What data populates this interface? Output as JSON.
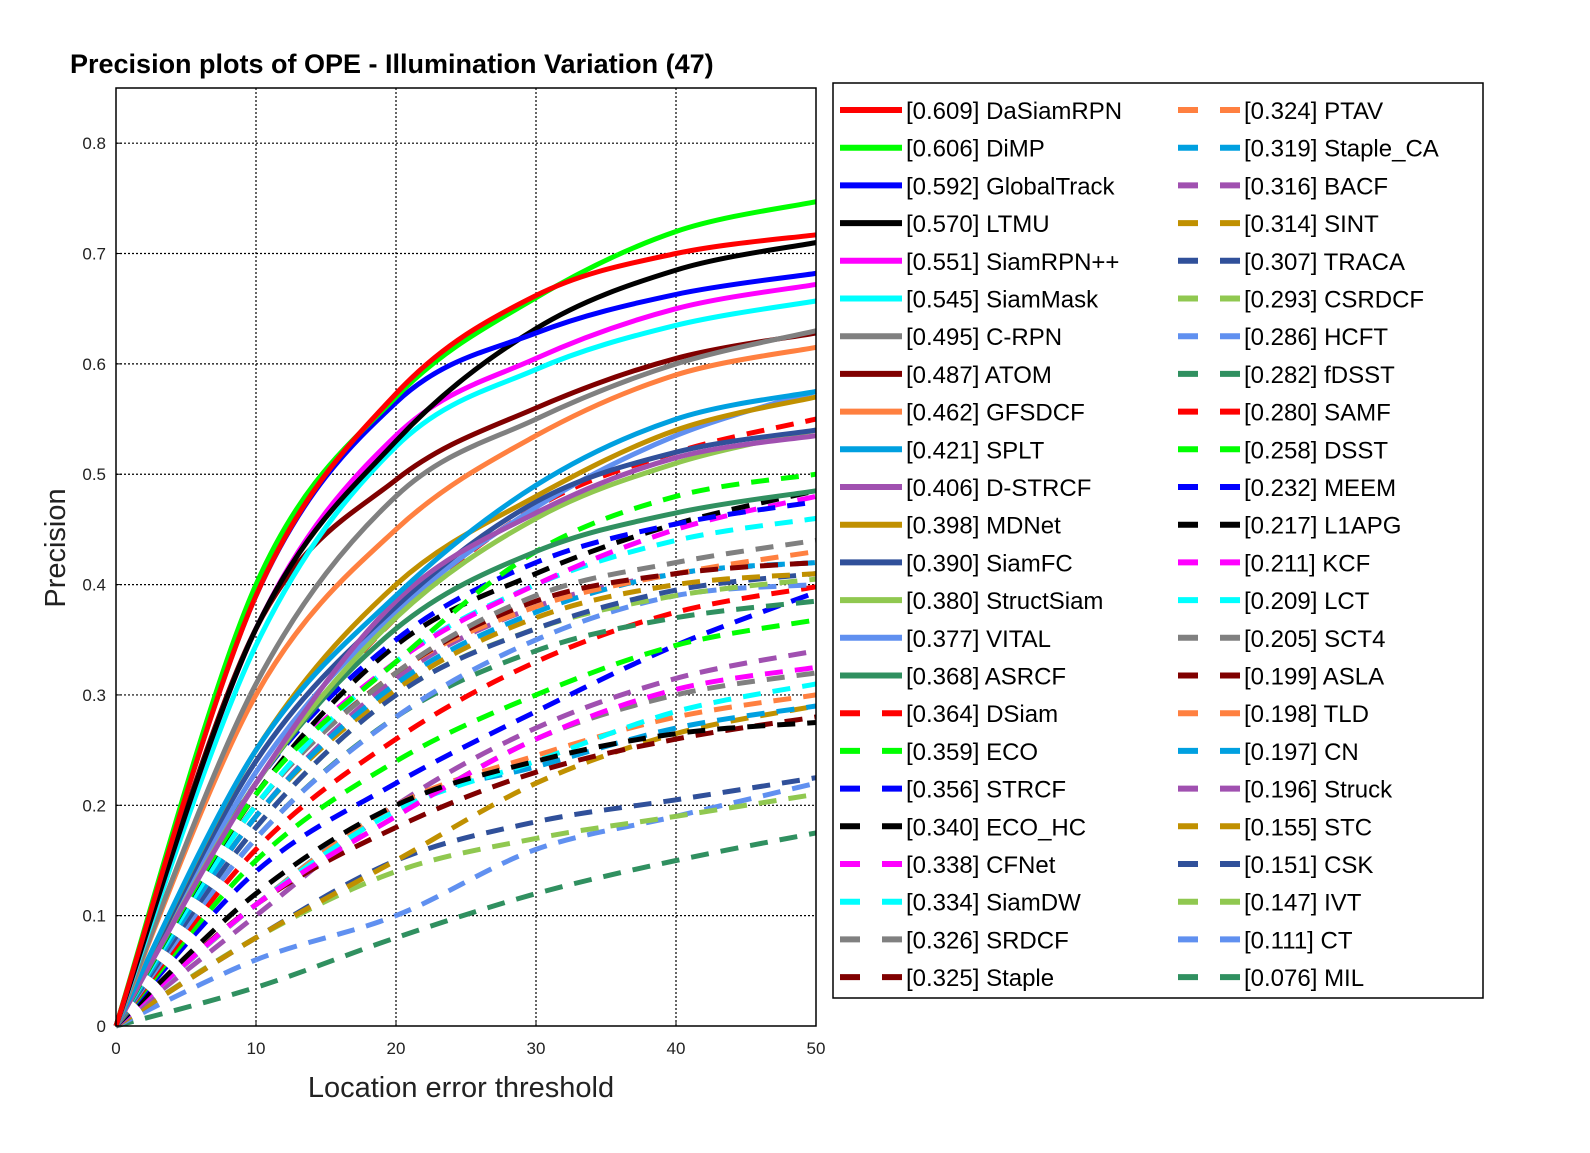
{
  "chart_data": {
    "type": "line",
    "title": "Precision plots of OPE - Illumination Variation (47)",
    "xlabel": "Location error threshold",
    "ylabel": "Precision",
    "xlim": [
      0,
      50
    ],
    "ylim": [
      0,
      0.85
    ],
    "xticks": [
      "0",
      "10",
      "20",
      "30",
      "40",
      "50"
    ],
    "yticks": [
      "0",
      "0.1",
      "0.2",
      "0.3",
      "0.4",
      "0.5",
      "0.6",
      "0.7",
      "0.8"
    ],
    "grid": true,
    "legend_position": "right",
    "series": [
      {
        "label": "[0.609] DaSiamRPN",
        "color": "#ff0000",
        "dashed": false,
        "values": [
          0.0,
          0.39,
          0.573,
          0.662,
          0.7,
          0.717
        ]
      },
      {
        "label": "[0.606] DiMP",
        "color": "#00ff00",
        "dashed": false,
        "values": [
          0.0,
          0.4,
          0.57,
          0.66,
          0.72,
          0.747
        ]
      },
      {
        "label": "[0.592] GlobalTrack",
        "color": "#0000ff",
        "dashed": false,
        "values": [
          0.0,
          0.39,
          0.565,
          0.628,
          0.663,
          0.682
        ]
      },
      {
        "label": "[0.570] LTMU",
        "color": "#000000",
        "dashed": false,
        "values": [
          0.0,
          0.36,
          0.53,
          0.632,
          0.685,
          0.71
        ]
      },
      {
        "label": "[0.551] SiamRPN++",
        "color": "#ff00ff",
        "dashed": false,
        "values": [
          0.0,
          0.36,
          0.535,
          0.605,
          0.65,
          0.672
        ]
      },
      {
        "label": "[0.545] SiamMask",
        "color": "#00ffff",
        "dashed": false,
        "values": [
          0.0,
          0.345,
          0.525,
          0.595,
          0.635,
          0.657
        ]
      },
      {
        "label": "[0.495] C-RPN",
        "color": "#808080",
        "dashed": false,
        "values": [
          0.0,
          0.31,
          0.48,
          0.55,
          0.6,
          0.63
        ]
      },
      {
        "label": "[0.487] ATOM",
        "color": "#800000",
        "dashed": false,
        "values": [
          0.0,
          0.36,
          0.495,
          0.56,
          0.605,
          0.628
        ]
      },
      {
        "label": "[0.462] GFSDCF",
        "color": "#ff8040",
        "dashed": false,
        "values": [
          0.0,
          0.3,
          0.45,
          0.535,
          0.59,
          0.615
        ]
      },
      {
        "label": "[0.421] SPLT",
        "color": "#00a0e0",
        "dashed": false,
        "values": [
          0.0,
          0.25,
          0.39,
          0.49,
          0.55,
          0.575
        ]
      },
      {
        "label": "[0.406] D-STRCF",
        "color": "#a050b0",
        "dashed": false,
        "values": [
          0.0,
          0.22,
          0.385,
          0.465,
          0.515,
          0.535
        ]
      },
      {
        "label": "[0.398] MDNet",
        "color": "#c09000",
        "dashed": false,
        "values": [
          0.0,
          0.25,
          0.4,
          0.48,
          0.54,
          0.57
        ]
      },
      {
        "label": "[0.390] SiamFC",
        "color": "#30509a",
        "dashed": false,
        "values": [
          0.0,
          0.24,
          0.38,
          0.475,
          0.52,
          0.54
        ]
      },
      {
        "label": "[0.380] StructSiam",
        "color": "#90c850",
        "dashed": false,
        "values": [
          0.0,
          0.22,
          0.37,
          0.46,
          0.51,
          0.54
        ]
      },
      {
        "label": "[0.377] VITAL",
        "color": "#6090f0",
        "dashed": false,
        "values": [
          0.0,
          0.23,
          0.375,
          0.47,
          0.535,
          0.575
        ]
      },
      {
        "label": "[0.368] ASRCF",
        "color": "#309060",
        "dashed": false,
        "values": [
          0.0,
          0.22,
          0.36,
          0.43,
          0.465,
          0.485
        ]
      },
      {
        "label": "[0.364] DSiam",
        "color": "#ff0000",
        "dashed": true,
        "values": [
          0.0,
          0.22,
          0.37,
          0.47,
          0.52,
          0.55
        ]
      },
      {
        "label": "[0.359] ECO",
        "color": "#00ff00",
        "dashed": true,
        "values": [
          0.0,
          0.21,
          0.33,
          0.43,
          0.48,
          0.5
        ]
      },
      {
        "label": "[0.356] STRCF",
        "color": "#0000ff",
        "dashed": true,
        "values": [
          0.0,
          0.22,
          0.35,
          0.42,
          0.455,
          0.475
        ]
      },
      {
        "label": "[0.340] ECO_HC",
        "color": "#000000",
        "dashed": true,
        "values": [
          0.0,
          0.21,
          0.345,
          0.41,
          0.455,
          0.485
        ]
      },
      {
        "label": "[0.338] CFNet",
        "color": "#ff00ff",
        "dashed": true,
        "values": [
          0.0,
          0.21,
          0.33,
          0.4,
          0.45,
          0.48
        ]
      },
      {
        "label": "[0.334] SiamDW",
        "color": "#00ffff",
        "dashed": true,
        "values": [
          0.0,
          0.2,
          0.33,
          0.4,
          0.44,
          0.46
        ]
      },
      {
        "label": "[0.326] SRDCF",
        "color": "#808080",
        "dashed": true,
        "values": [
          0.0,
          0.2,
          0.32,
          0.39,
          0.42,
          0.44
        ]
      },
      {
        "label": "[0.325] Staple",
        "color": "#800000",
        "dashed": true,
        "values": [
          0.0,
          0.2,
          0.32,
          0.385,
          0.41,
          0.42
        ]
      },
      {
        "label": "[0.324] PTAV",
        "color": "#ff8040",
        "dashed": true,
        "values": [
          0.0,
          0.2,
          0.32,
          0.38,
          0.41,
          0.43
        ]
      },
      {
        "label": "[0.319] Staple_CA",
        "color": "#00a0e0",
        "dashed": true,
        "values": [
          0.0,
          0.19,
          0.31,
          0.375,
          0.41,
          0.42
        ]
      },
      {
        "label": "[0.316] BACF",
        "color": "#a050b0",
        "dashed": true,
        "values": [
          0.0,
          0.19,
          0.315,
          0.38,
          0.41,
          0.42
        ]
      },
      {
        "label": "[0.314] SINT",
        "color": "#c09000",
        "dashed": true,
        "values": [
          0.0,
          0.19,
          0.305,
          0.37,
          0.4,
          0.41
        ]
      },
      {
        "label": "[0.307] TRACA",
        "color": "#30509a",
        "dashed": true,
        "values": [
          0.0,
          0.18,
          0.3,
          0.36,
          0.395,
          0.41
        ]
      },
      {
        "label": "[0.293] CSRDCF",
        "color": "#90c850",
        "dashed": true,
        "values": [
          0.0,
          0.18,
          0.3,
          0.36,
          0.39,
          0.405
        ]
      },
      {
        "label": "[0.286] HCFT",
        "color": "#6090f0",
        "dashed": true,
        "values": [
          0.0,
          0.17,
          0.28,
          0.35,
          0.39,
          0.4
        ]
      },
      {
        "label": "[0.282] fDSST",
        "color": "#309060",
        "dashed": true,
        "values": [
          0.0,
          0.17,
          0.28,
          0.34,
          0.37,
          0.385
        ]
      },
      {
        "label": "[0.280] SAMF",
        "color": "#ff0000",
        "dashed": true,
        "values": [
          0.0,
          0.16,
          0.26,
          0.33,
          0.375,
          0.398
        ]
      },
      {
        "label": "[0.258] DSST",
        "color": "#00ff00",
        "dashed": true,
        "values": [
          0.0,
          0.15,
          0.24,
          0.3,
          0.345,
          0.368
        ]
      },
      {
        "label": "[0.232] MEEM",
        "color": "#0000ff",
        "dashed": true,
        "values": [
          0.0,
          0.14,
          0.22,
          0.285,
          0.345,
          0.393
        ]
      },
      {
        "label": "[0.217] L1APG",
        "color": "#000000",
        "dashed": true,
        "values": [
          0.0,
          0.12,
          0.2,
          0.24,
          0.265,
          0.275
        ]
      },
      {
        "label": "[0.211] KCF",
        "color": "#ff00ff",
        "dashed": true,
        "values": [
          0.0,
          0.11,
          0.19,
          0.26,
          0.305,
          0.325
        ]
      },
      {
        "label": "[0.209] LCT",
        "color": "#00ffff",
        "dashed": true,
        "values": [
          0.0,
          0.11,
          0.195,
          0.24,
          0.285,
          0.31
        ]
      },
      {
        "label": "[0.205] SCT4",
        "color": "#808080",
        "dashed": true,
        "values": [
          0.0,
          0.11,
          0.19,
          0.26,
          0.3,
          0.32
        ]
      },
      {
        "label": "[0.199] ASLA",
        "color": "#800000",
        "dashed": true,
        "values": [
          0.0,
          0.11,
          0.18,
          0.23,
          0.26,
          0.28
        ]
      },
      {
        "label": "[0.198] TLD",
        "color": "#ff8040",
        "dashed": true,
        "values": [
          0.0,
          0.11,
          0.2,
          0.245,
          0.28,
          0.3
        ]
      },
      {
        "label": "[0.197] CN",
        "color": "#00a0e0",
        "dashed": true,
        "values": [
          0.0,
          0.11,
          0.2,
          0.235,
          0.27,
          0.29
        ]
      },
      {
        "label": "[0.196] Struck",
        "color": "#a050b0",
        "dashed": true,
        "values": [
          0.0,
          0.1,
          0.2,
          0.27,
          0.315,
          0.34
        ]
      },
      {
        "label": "[0.155] STC",
        "color": "#c09000",
        "dashed": true,
        "values": [
          0.0,
          0.08,
          0.15,
          0.22,
          0.265,
          0.29
        ]
      },
      {
        "label": "[0.151] CSK",
        "color": "#30509a",
        "dashed": true,
        "values": [
          0.0,
          0.08,
          0.15,
          0.185,
          0.205,
          0.225
        ]
      },
      {
        "label": "[0.147] IVT",
        "color": "#90c850",
        "dashed": true,
        "values": [
          0.0,
          0.08,
          0.14,
          0.17,
          0.19,
          0.21
        ]
      },
      {
        "label": "[0.111] CT",
        "color": "#6090f0",
        "dashed": true,
        "values": [
          0.0,
          0.06,
          0.1,
          0.16,
          0.19,
          0.22
        ]
      },
      {
        "label": "[0.076] MIL",
        "color": "#309060",
        "dashed": true,
        "values": [
          0.0,
          0.035,
          0.08,
          0.12,
          0.15,
          0.175
        ]
      }
    ]
  }
}
